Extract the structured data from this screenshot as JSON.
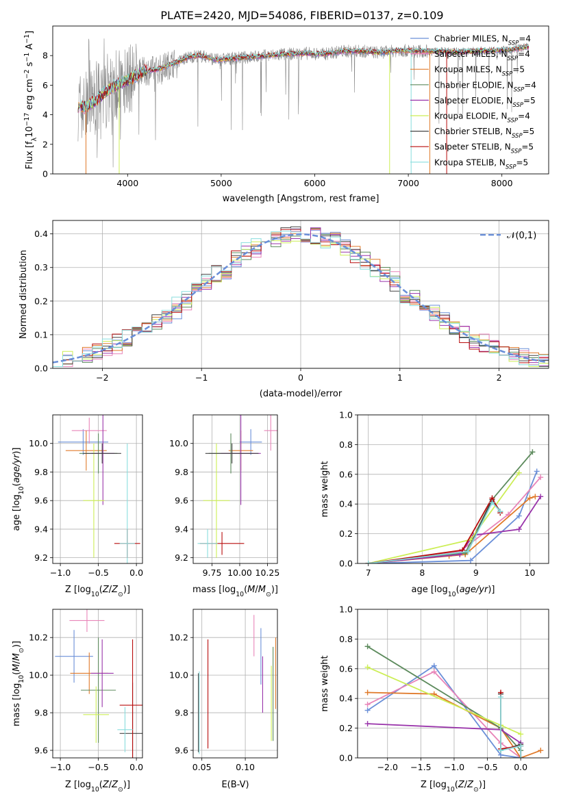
{
  "figure_title": "PLATE=2420, MJD=54086, FIBERID=0137, z=0.109",
  "colors": {
    "chabrier_miles": "#6a8fd8",
    "salpeter_miles": "#e884b8",
    "kroupa_miles": "#e07a2a",
    "chabrier_elodie": "#5c8a5c",
    "salpeter_elodie": "#9933aa",
    "kroupa_elodie": "#ccee55",
    "chabrier_stelib": "#444444",
    "salpeter_stelib": "#b80c0c",
    "kroupa_stelib": "#88dddd",
    "data": "#888888",
    "grid": "#b0b0b0"
  },
  "chart_data": [
    {
      "id": "spectrum",
      "type": "line",
      "xlabel": "wavelength [Angstrom, rest frame]",
      "ylabel": "Flux [f_λ10^-17 erg cm^-2 s^-1 A^-1]",
      "xlim": [
        3200,
        8500
      ],
      "ylim": [
        0,
        10
      ],
      "xticks": [
        4000,
        5000,
        6000,
        7000,
        8000
      ],
      "yticks": [
        0,
        2,
        4,
        6,
        8
      ],
      "grid": false,
      "legend_position": "top-right",
      "legend": [
        {
          "key": "chabrier_miles",
          "prefix": "Chabrier MILES, N",
          "sub": "SSP",
          "suffix": "=4"
        },
        {
          "key": "salpeter_miles",
          "prefix": "Salpeter MILES, N",
          "sub": "SSP",
          "suffix": "=4"
        },
        {
          "key": "kroupa_miles",
          "prefix": "Kroupa MILES, N",
          "sub": "SSP",
          "suffix": "=5"
        },
        {
          "key": "chabrier_elodie",
          "prefix": "Chabrier ELODIE, N",
          "sub": "SSP",
          "suffix": "=4"
        },
        {
          "key": "salpeter_elodie",
          "prefix": "Salpeter ELODIE, N",
          "sub": "SSP",
          "suffix": "=5"
        },
        {
          "key": "kroupa_elodie",
          "prefix": "Kroupa ELODIE, N",
          "sub": "SSP",
          "suffix": "=4"
        },
        {
          "key": "chabrier_stelib",
          "prefix": "Chabrier STELIB, N",
          "sub": "SSP",
          "suffix": "=5"
        },
        {
          "key": "salpeter_stelib",
          "prefix": "Salpeter STELIB, N",
          "sub": "SSP",
          "suffix": "=5"
        },
        {
          "key": "kroupa_stelib",
          "prefix": "Kroupa STELIB, N",
          "sub": "SSP",
          "suffix": "=5"
        }
      ],
      "continuum": {
        "x": [
          3470,
          3550,
          3650,
          3750,
          3850,
          3950,
          4050,
          4150,
          4250,
          4350,
          4450,
          4550,
          4650,
          4750,
          4850,
          4950,
          5100,
          5300,
          5500,
          5700,
          5900,
          6100,
          6300,
          6500,
          6700,
          6900,
          7100,
          7300,
          7500,
          7700,
          7900,
          8100,
          8290
        ],
        "y": [
          4.6,
          4.5,
          4.9,
          5.5,
          5.9,
          6.2,
          6.5,
          6.9,
          7.0,
          7.1,
          7.4,
          7.6,
          7.9,
          8.0,
          7.9,
          7.7,
          7.8,
          7.9,
          8.0,
          8.1,
          8.15,
          8.1,
          8.3,
          8.3,
          8.2,
          8.35,
          8.3,
          8.3,
          8.25,
          8.3,
          8.35,
          8.4,
          8.6
        ]
      }
    },
    {
      "id": "residuals",
      "type": "line",
      "xlabel": "(data-model)/error",
      "ylabel": "Normed distribution",
      "xlim": [
        -2.5,
        2.5
      ],
      "ylim": [
        0,
        0.44
      ],
      "xticks": [
        -2,
        -1,
        0,
        1,
        2
      ],
      "yticks": [
        0.0,
        0.1,
        0.2,
        0.3,
        0.4
      ],
      "grid": true,
      "legend_position": "top-right",
      "legend_label": "𝒩(0,1)",
      "curve": {
        "type": "gaussian",
        "mean": 0,
        "sigma": 1
      }
    },
    {
      "id": "age_vs_z",
      "type": "scatter",
      "xlabel_base": "Z [log",
      "xlabel_sub": "10",
      "xlabel_arg": "(Z/Z",
      "xlabel_sunsub": "⊙",
      "xlabel_end": ")]",
      "ylabel": "age [log10(age/yr)]",
      "xlim": [
        -1.1,
        0.08
      ],
      "ylim": [
        9.16,
        10.2
      ],
      "xticks": [
        -1.0,
        -0.5,
        0.0
      ],
      "yticks": [
        9.2,
        9.4,
        9.6,
        9.8,
        10.0
      ],
      "grid": true,
      "points": [
        {
          "key": "chabrier_miles",
          "x": -0.7,
          "xerr": 0.33,
          "y": 10.01,
          "yerr": 0.09
        },
        {
          "key": "salpeter_miles",
          "x": -0.62,
          "xerr": 0.23,
          "y": 10.09,
          "yerr": 0.09
        },
        {
          "key": "kroupa_miles",
          "x": -0.66,
          "xerr": 0.27,
          "y": 9.95,
          "yerr": 0.14
        },
        {
          "key": "chabrier_elodie",
          "x": -0.5,
          "xerr": 0.25,
          "y": 9.93,
          "yerr": 0.14
        },
        {
          "key": "salpeter_elodie",
          "x": -0.44,
          "xerr": 0.15,
          "y": 9.93,
          "yerr": 0.36
        },
        {
          "key": "kroupa_elodie",
          "x": -0.56,
          "xerr": 0.14,
          "y": 9.6,
          "yerr": 0.4
        },
        {
          "key": "chabrier_stelib",
          "x": -0.45,
          "xerr": 0.25,
          "y": 9.93,
          "yerr": 0.07
        },
        {
          "key": "salpeter_stelib",
          "x": -0.12,
          "xerr": 0.17,
          "y": 9.3,
          "yerr": 0.1
        },
        {
          "key": "kroupa_stelib",
          "x": -0.12,
          "xerr": 0.1,
          "y": 9.3,
          "yerr": 0.7
        }
      ]
    },
    {
      "id": "age_vs_mass",
      "type": "scatter",
      "xlabel_base": "mass [log",
      "xlabel_sub": "10",
      "xlabel_arg": "(M/M",
      "xlabel_sunsub": "⊙",
      "xlabel_end": ")]",
      "xlim": [
        9.58,
        10.34
      ],
      "ylim": [
        9.16,
        10.2
      ],
      "xticks": [
        9.75,
        10.0,
        10.25
      ],
      "yticks": [
        9.2,
        9.4,
        9.6,
        9.8,
        10.0
      ],
      "grid": true,
      "points": [
        {
          "key": "chabrier_miles",
          "x": 10.1,
          "xerr": 0.1,
          "y": 10.01,
          "yerr": 0.09
        },
        {
          "key": "salpeter_miles",
          "x": 10.28,
          "xerr": 0.06,
          "y": 10.09,
          "yerr": 0.14
        },
        {
          "key": "kroupa_miles",
          "x": 10.01,
          "xerr": 0.11,
          "y": 9.95,
          "yerr": 0.14
        },
        {
          "key": "chabrier_elodie",
          "x": 9.92,
          "xerr": 0.2,
          "y": 9.93,
          "yerr": 0.14
        },
        {
          "key": "salpeter_elodie",
          "x": 10.01,
          "xerr": 0.18,
          "y": 9.93,
          "yerr": 0.36
        },
        {
          "key": "kroupa_elodie",
          "x": 9.79,
          "xerr": 0.12,
          "y": 9.6,
          "yerr": 0.4
        },
        {
          "key": "chabrier_stelib",
          "x": 9.93,
          "xerr": 0.24,
          "y": 9.93,
          "yerr": 0.07
        },
        {
          "key": "salpeter_stelib",
          "x": 9.84,
          "xerr": 0.2,
          "y": 9.3,
          "yerr": 0.08
        },
        {
          "key": "kroupa_stelib",
          "x": 9.71,
          "xerr": 0.09,
          "y": 9.3,
          "yerr": 0.1
        }
      ]
    },
    {
      "id": "weight_vs_age",
      "type": "line",
      "xlabel": "age [log10(age/yr)]",
      "ylabel": "mass weight",
      "xlim": [
        6.8,
        10.35
      ],
      "ylim": [
        0,
        1.0
      ],
      "xticks": [
        7,
        8,
        9,
        10
      ],
      "yticks": [
        0.0,
        0.2,
        0.4,
        0.6,
        0.8,
        1.0
      ],
      "grid": true,
      "series": [
        {
          "key": "chabrier_miles",
          "x": [
            7.0,
            8.9,
            9.8,
            10.13
          ],
          "y": [
            0.0,
            0.02,
            0.32,
            0.62
          ]
        },
        {
          "key": "salpeter_miles",
          "x": [
            7.0,
            8.7,
            9.6,
            10.2
          ],
          "y": [
            0.0,
            0.08,
            0.33,
            0.58
          ]
        },
        {
          "key": "kroupa_miles",
          "x": [
            7.0,
            8.5,
            8.8,
            10.0,
            10.1
          ],
          "y": [
            0.0,
            0.05,
            0.06,
            0.44,
            0.45
          ]
        },
        {
          "key": "chabrier_elodie",
          "x": [
            7.0,
            8.8,
            9.3,
            10.05
          ],
          "y": [
            0.0,
            0.07,
            0.43,
            0.75
          ]
        },
        {
          "key": "salpeter_elodie",
          "x": [
            7.0,
            8.7,
            8.95,
            9.8,
            10.2
          ],
          "y": [
            0.0,
            0.06,
            0.19,
            0.23,
            0.45
          ]
        },
        {
          "key": "kroupa_elodie",
          "x": [
            7.0,
            8.9,
            9.8
          ],
          "y": [
            0.0,
            0.16,
            0.61
          ]
        },
        {
          "key": "chabrier_stelib",
          "x": [
            7.0,
            8.85,
            9.3,
            9.45
          ],
          "y": [
            0.0,
            0.08,
            0.43,
            0.35
          ]
        },
        {
          "key": "salpeter_stelib",
          "x": [
            7.0,
            8.75,
            9.3,
            9.45
          ],
          "y": [
            0.0,
            0.09,
            0.44,
            0.34
          ]
        },
        {
          "key": "kroupa_stelib",
          "x": [
            7.0,
            8.85,
            9.3,
            9.45
          ],
          "y": [
            0.0,
            0.08,
            0.41,
            0.35
          ]
        }
      ]
    },
    {
      "id": "mass_vs_z",
      "type": "scatter",
      "ylabel": "mass [log10(M/M⊙)]",
      "xlim": [
        -1.1,
        0.08
      ],
      "ylim": [
        9.56,
        10.35
      ],
      "xticks": [
        -1.0,
        -0.5,
        0.0
      ],
      "yticks": [
        9.6,
        9.8,
        10.0,
        10.2
      ],
      "grid": true,
      "points": [
        {
          "key": "chabrier_miles",
          "x": -0.82,
          "xerr": 0.25,
          "y": 10.1,
          "yerr": 0.14
        },
        {
          "key": "salpeter_miles",
          "x": -0.65,
          "xerr": 0.23,
          "y": 10.29,
          "yerr": 0.06
        },
        {
          "key": "kroupa_miles",
          "x": -0.62,
          "xerr": 0.25,
          "y": 10.01,
          "yerr": 0.11
        },
        {
          "key": "chabrier_elodie",
          "x": -0.5,
          "xerr": 0.23,
          "y": 9.92,
          "yerr": 0.28
        },
        {
          "key": "salpeter_elodie",
          "x": -0.45,
          "xerr": 0.15,
          "y": 10.01,
          "yerr": 0.18
        },
        {
          "key": "kroupa_elodie",
          "x": -0.53,
          "xerr": 0.17,
          "y": 9.79,
          "yerr": 0.15
        },
        {
          "key": "chabrier_stelib",
          "x": -0.05,
          "xerr": 0.17,
          "y": 9.69,
          "yerr": 0.27
        },
        {
          "key": "salpeter_stelib",
          "x": -0.05,
          "xerr": 0.17,
          "y": 9.84,
          "yerr": 0.35
        },
        {
          "key": "kroupa_stelib",
          "x": -0.15,
          "xerr": 0.1,
          "y": 9.71,
          "yerr": 0.12
        }
      ]
    },
    {
      "id": "mass_vs_ebv",
      "type": "scatter",
      "xlabel": "E(B-V)",
      "xlim": [
        0.04,
        0.137
      ],
      "ylim": [
        9.56,
        10.35
      ],
      "xticks": [
        0.05,
        0.1
      ],
      "yticks": [
        9.6,
        9.8,
        10.0,
        10.2
      ],
      "grid": true,
      "points": [
        {
          "key": "chabrier_miles",
          "x": 0.118,
          "xerr": 0,
          "y": 10.1,
          "yerr": 0.15
        },
        {
          "key": "salpeter_miles",
          "x": 0.11,
          "xerr": 0,
          "y": 10.21,
          "yerr": 0.11
        },
        {
          "key": "kroupa_miles",
          "x": 0.135,
          "xerr": 0,
          "y": 10.01,
          "yerr": 0.19
        },
        {
          "key": "chabrier_elodie",
          "x": 0.132,
          "xerr": 0,
          "y": 9.9,
          "yerr": 0.25
        },
        {
          "key": "salpeter_elodie",
          "x": 0.12,
          "xerr": 0,
          "y": 9.95,
          "yerr": 0.15
        },
        {
          "key": "kroupa_elodie",
          "x": 0.13,
          "xerr": 0,
          "y": 9.85,
          "yerr": 0.2
        },
        {
          "key": "chabrier_stelib",
          "x": 0.046,
          "xerr": 0,
          "y": 9.8,
          "yerr": 0.21
        },
        {
          "key": "salpeter_stelib",
          "x": 0.057,
          "xerr": 0,
          "y": 9.9,
          "yerr": 0.29
        },
        {
          "key": "kroupa_stelib",
          "x": 0.047,
          "xerr": 0,
          "y": 9.8,
          "yerr": 0.22
        }
      ]
    },
    {
      "id": "weight_vs_z",
      "type": "line",
      "ylabel": "mass weight",
      "xlim": [
        -2.45,
        0.42
      ],
      "ylim": [
        0,
        1.0
      ],
      "xticks": [
        -2.0,
        -1.5,
        -1.0,
        -0.5,
        0.0
      ],
      "yticks": [
        0.0,
        0.2,
        0.4,
        0.6,
        0.8,
        1.0
      ],
      "grid": true,
      "series": [
        {
          "key": "chabrier_miles",
          "x": [
            -2.3,
            -1.3,
            -0.3,
            0.0
          ],
          "y": [
            0.32,
            0.62,
            0.02,
            0.0
          ]
        },
        {
          "key": "salpeter_miles",
          "x": [
            -2.3,
            -1.3,
            -0.3,
            0.0
          ],
          "y": [
            0.36,
            0.58,
            0.1,
            0.0
          ]
        },
        {
          "key": "kroupa_miles",
          "x": [
            -2.3,
            -1.3,
            -0.3,
            0.0,
            0.3
          ],
          "y": [
            0.44,
            0.43,
            0.2,
            0.0,
            0.05
          ]
        },
        {
          "key": "chabrier_elodie",
          "x": [
            -2.3,
            -0.3,
            0.0
          ],
          "y": [
            0.75,
            0.2,
            0.05
          ]
        },
        {
          "key": "salpeter_elodie",
          "x": [
            -2.3,
            -0.3,
            0.0
          ],
          "y": [
            0.23,
            0.19,
            0.1
          ]
        },
        {
          "key": "kroupa_elodie",
          "x": [
            -2.3,
            -0.3,
            0.0
          ],
          "y": [
            0.61,
            0.22,
            0.16
          ]
        },
        {
          "key": "chabrier_stelib",
          "x": [
            -0.3,
            -0.3,
            0.0,
            0.0
          ],
          "y": [
            0.43,
            0.05,
            0.09,
            0.0
          ]
        },
        {
          "key": "salpeter_stelib",
          "x": [
            -0.3,
            -0.3,
            0.0,
            0.0
          ],
          "y": [
            0.44,
            0.06,
            0.08,
            0.0
          ]
        },
        {
          "key": "kroupa_stelib",
          "x": [
            -0.3,
            -0.3,
            0.0,
            0.0
          ],
          "y": [
            0.41,
            0.05,
            0.08,
            0.0
          ]
        }
      ]
    }
  ]
}
